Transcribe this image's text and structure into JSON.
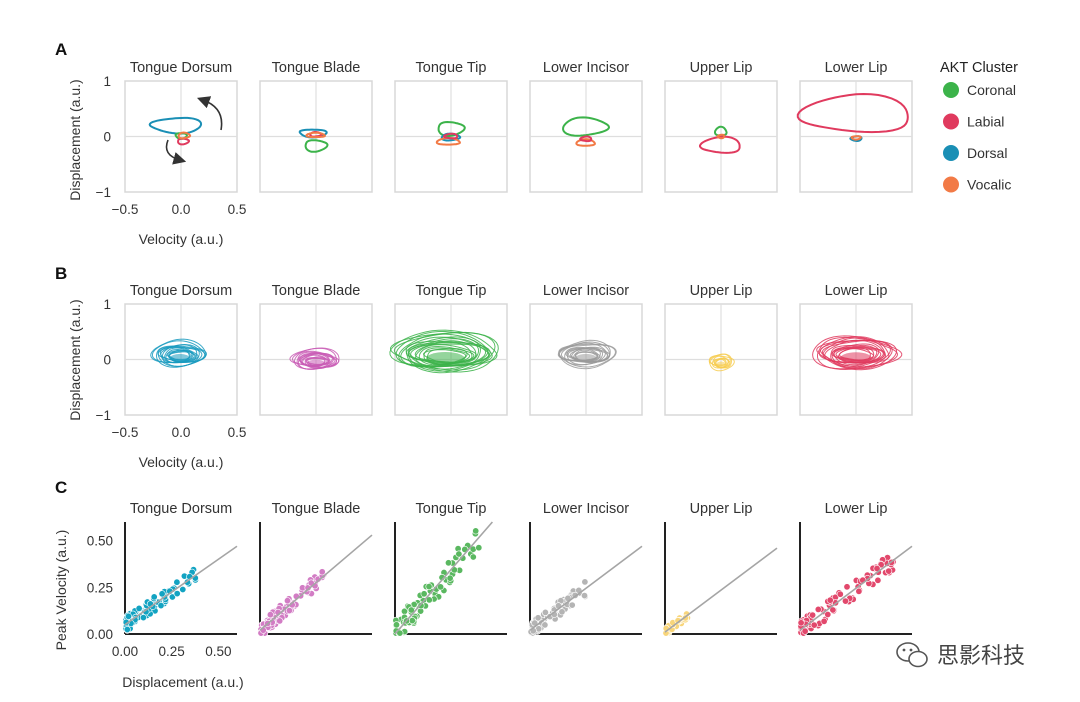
{
  "panels": [
    "A",
    "B",
    "C"
  ],
  "articulators": [
    "Tongue Dorsum",
    "Tongue Blade",
    "Tongue Tip",
    "Lower Incisor",
    "Upper Lip",
    "Lower Lip"
  ],
  "legend": {
    "title": "AKT Cluster",
    "items": [
      {
        "label": "Coronal",
        "color": "#3cb34a"
      },
      {
        "label": "Labial",
        "color": "#e03a5e"
      },
      {
        "label": "Dorsal",
        "color": "#1a8fb5"
      },
      {
        "label": "Vocalic",
        "color": "#f27a46"
      }
    ]
  },
  "phase_axes": {
    "xlabel": "Velocity (a.u.)",
    "ylabel": "Displacement (a.u.)",
    "xticks": [
      "−0.5",
      "0.0",
      "0.5"
    ],
    "yticks": [
      "1",
      "0",
      "−1"
    ],
    "xlim": [
      -0.5,
      0.5
    ],
    "ylim": [
      -1,
      1
    ]
  },
  "scatter_axes": {
    "xlabel": "Displacement (a.u.)",
    "ylabel": "Peak Velocity (a.u.)",
    "xticks": [
      "0.00",
      "0.25",
      "0.50"
    ],
    "yticks": [
      "0.50",
      "0.25",
      "0.00"
    ],
    "xlim": [
      0,
      0.6
    ],
    "ylim": [
      0,
      0.6
    ]
  },
  "row_b_colors": [
    "#1a9bbf",
    "#c95cb5",
    "#3cb34a",
    "#9a9a9a",
    "#f7cc50",
    "#e03a5e"
  ],
  "row_c_colors": [
    "#12a3c2",
    "#d27cc4",
    "#5ab860",
    "#b4b4b4",
    "#f8d57a",
    "#e2486c"
  ],
  "watermark": "思影科技",
  "chart_data": [
    {
      "type": "line",
      "panel": "A",
      "description_series": "phase-space trajectory per AKT cluster, per articulator",
      "x_label": "Velocity (a.u.)",
      "y_label": "Displacement (a.u.)",
      "xlim": [
        -0.5,
        0.5
      ],
      "ylim": [
        -1,
        1
      ],
      "loops": [
        [
          {
            "cluster": "Dorsal",
            "cx": -0.05,
            "cy": 0.2,
            "rx": 0.22,
            "ry": 0.14
          },
          {
            "cluster": "Coronal",
            "cx": 0.0,
            "cy": 0.02,
            "rx": 0.05,
            "ry": 0.05
          },
          {
            "cluster": "Labial",
            "cx": 0.02,
            "cy": -0.08,
            "rx": 0.05,
            "ry": 0.05
          },
          {
            "cluster": "Vocalic",
            "cx": 0.03,
            "cy": 0.02,
            "rx": 0.05,
            "ry": 0.05
          }
        ],
        [
          {
            "cluster": "Dorsal",
            "cx": -0.03,
            "cy": 0.07,
            "rx": 0.12,
            "ry": 0.07
          },
          {
            "cluster": "Coronal",
            "cx": 0.0,
            "cy": -0.15,
            "rx": 0.1,
            "ry": 0.1
          },
          {
            "cluster": "Labial",
            "cx": 0.0,
            "cy": 0.04,
            "rx": 0.05,
            "ry": 0.04
          },
          {
            "cluster": "Vocalic",
            "cx": 0.0,
            "cy": 0.02,
            "rx": 0.08,
            "ry": 0.04
          }
        ],
        [
          {
            "cluster": "Coronal",
            "cx": 0.0,
            "cy": 0.16,
            "rx": 0.12,
            "ry": 0.12
          },
          {
            "cluster": "Dorsal",
            "cx": 0.0,
            "cy": -0.01,
            "rx": 0.08,
            "ry": 0.06
          },
          {
            "cluster": "Vocalic",
            "cx": -0.02,
            "cy": -0.1,
            "rx": 0.1,
            "ry": 0.06
          },
          {
            "cluster": "Labial",
            "cx": 0.0,
            "cy": 0.0,
            "rx": 0.06,
            "ry": 0.04
          }
        ],
        [
          {
            "cluster": "Coronal",
            "cx": 0.0,
            "cy": 0.18,
            "rx": 0.2,
            "ry": 0.16
          },
          {
            "cluster": "Vocalic",
            "cx": 0.0,
            "cy": -0.12,
            "rx": 0.08,
            "ry": 0.06
          },
          {
            "cluster": "Labial",
            "cx": 0.0,
            "cy": -0.05,
            "rx": 0.05,
            "ry": 0.04
          }
        ],
        [
          {
            "cluster": "Coronal",
            "cx": 0.0,
            "cy": 0.08,
            "rx": 0.05,
            "ry": 0.08
          },
          {
            "cluster": "Labial",
            "cx": 0.0,
            "cy": -0.18,
            "rx": 0.18,
            "ry": 0.14
          },
          {
            "cluster": "Vocalic",
            "cx": 0.0,
            "cy": 0.0,
            "rx": 0.03,
            "ry": 0.03
          }
        ],
        [
          {
            "cluster": "Labial",
            "cx": 0.0,
            "cy": 0.35,
            "rx": 0.5,
            "ry": 0.33
          },
          {
            "cluster": "Dorsal",
            "cx": 0.0,
            "cy": -0.04,
            "rx": 0.05,
            "ry": 0.04
          },
          {
            "cluster": "Vocalic",
            "cx": 0.0,
            "cy": -0.02,
            "rx": 0.04,
            "ry": 0.03
          }
        ]
      ]
    },
    {
      "type": "line",
      "panel": "B",
      "description_series": "overlaid phase-space trajectories per articulator",
      "x_label": "Velocity (a.u.)",
      "y_label": "Displacement (a.u.)",
      "xlim": [
        -0.5,
        0.5
      ],
      "ylim": [
        -1,
        1
      ],
      "bundles": [
        {
          "cx": -0.01,
          "cy": 0.08,
          "rx": 0.25,
          "ry": 0.22,
          "count": 14
        },
        {
          "cx": 0.0,
          "cy": -0.02,
          "rx": 0.22,
          "ry": 0.18,
          "count": 14
        },
        {
          "cx": -0.05,
          "cy": 0.1,
          "rx": 0.5,
          "ry": 0.35,
          "count": 18
        },
        {
          "cx": 0.0,
          "cy": 0.08,
          "rx": 0.27,
          "ry": 0.22,
          "count": 14
        },
        {
          "cx": 0.0,
          "cy": -0.05,
          "rx": 0.12,
          "ry": 0.15,
          "count": 8
        },
        {
          "cx": 0.0,
          "cy": 0.1,
          "rx": 0.4,
          "ry": 0.3,
          "count": 16
        }
      ]
    },
    {
      "type": "scatter",
      "panel": "C",
      "x_label": "Displacement (a.u.)",
      "y_label": "Peak Velocity (a.u.)",
      "xlim": [
        0,
        0.6
      ],
      "ylim": [
        0,
        0.6
      ],
      "fit_slope": [
        0.7,
        0.85,
        1.15,
        0.75,
        0.75,
        0.75
      ],
      "fit_intercept": [
        0.05,
        0.02,
        0.0,
        0.02,
        0.01,
        0.02
      ],
      "scatter_params": [
        {
          "n": 90,
          "xmax": 0.4,
          "noise": 0.04
        },
        {
          "n": 90,
          "xmax": 0.35,
          "noise": 0.04
        },
        {
          "n": 90,
          "xmax": 0.45,
          "noise": 0.07
        },
        {
          "n": 70,
          "xmax": 0.3,
          "noise": 0.04
        },
        {
          "n": 40,
          "xmax": 0.12,
          "noise": 0.02
        },
        {
          "n": 90,
          "xmax": 0.5,
          "noise": 0.05
        }
      ]
    }
  ]
}
